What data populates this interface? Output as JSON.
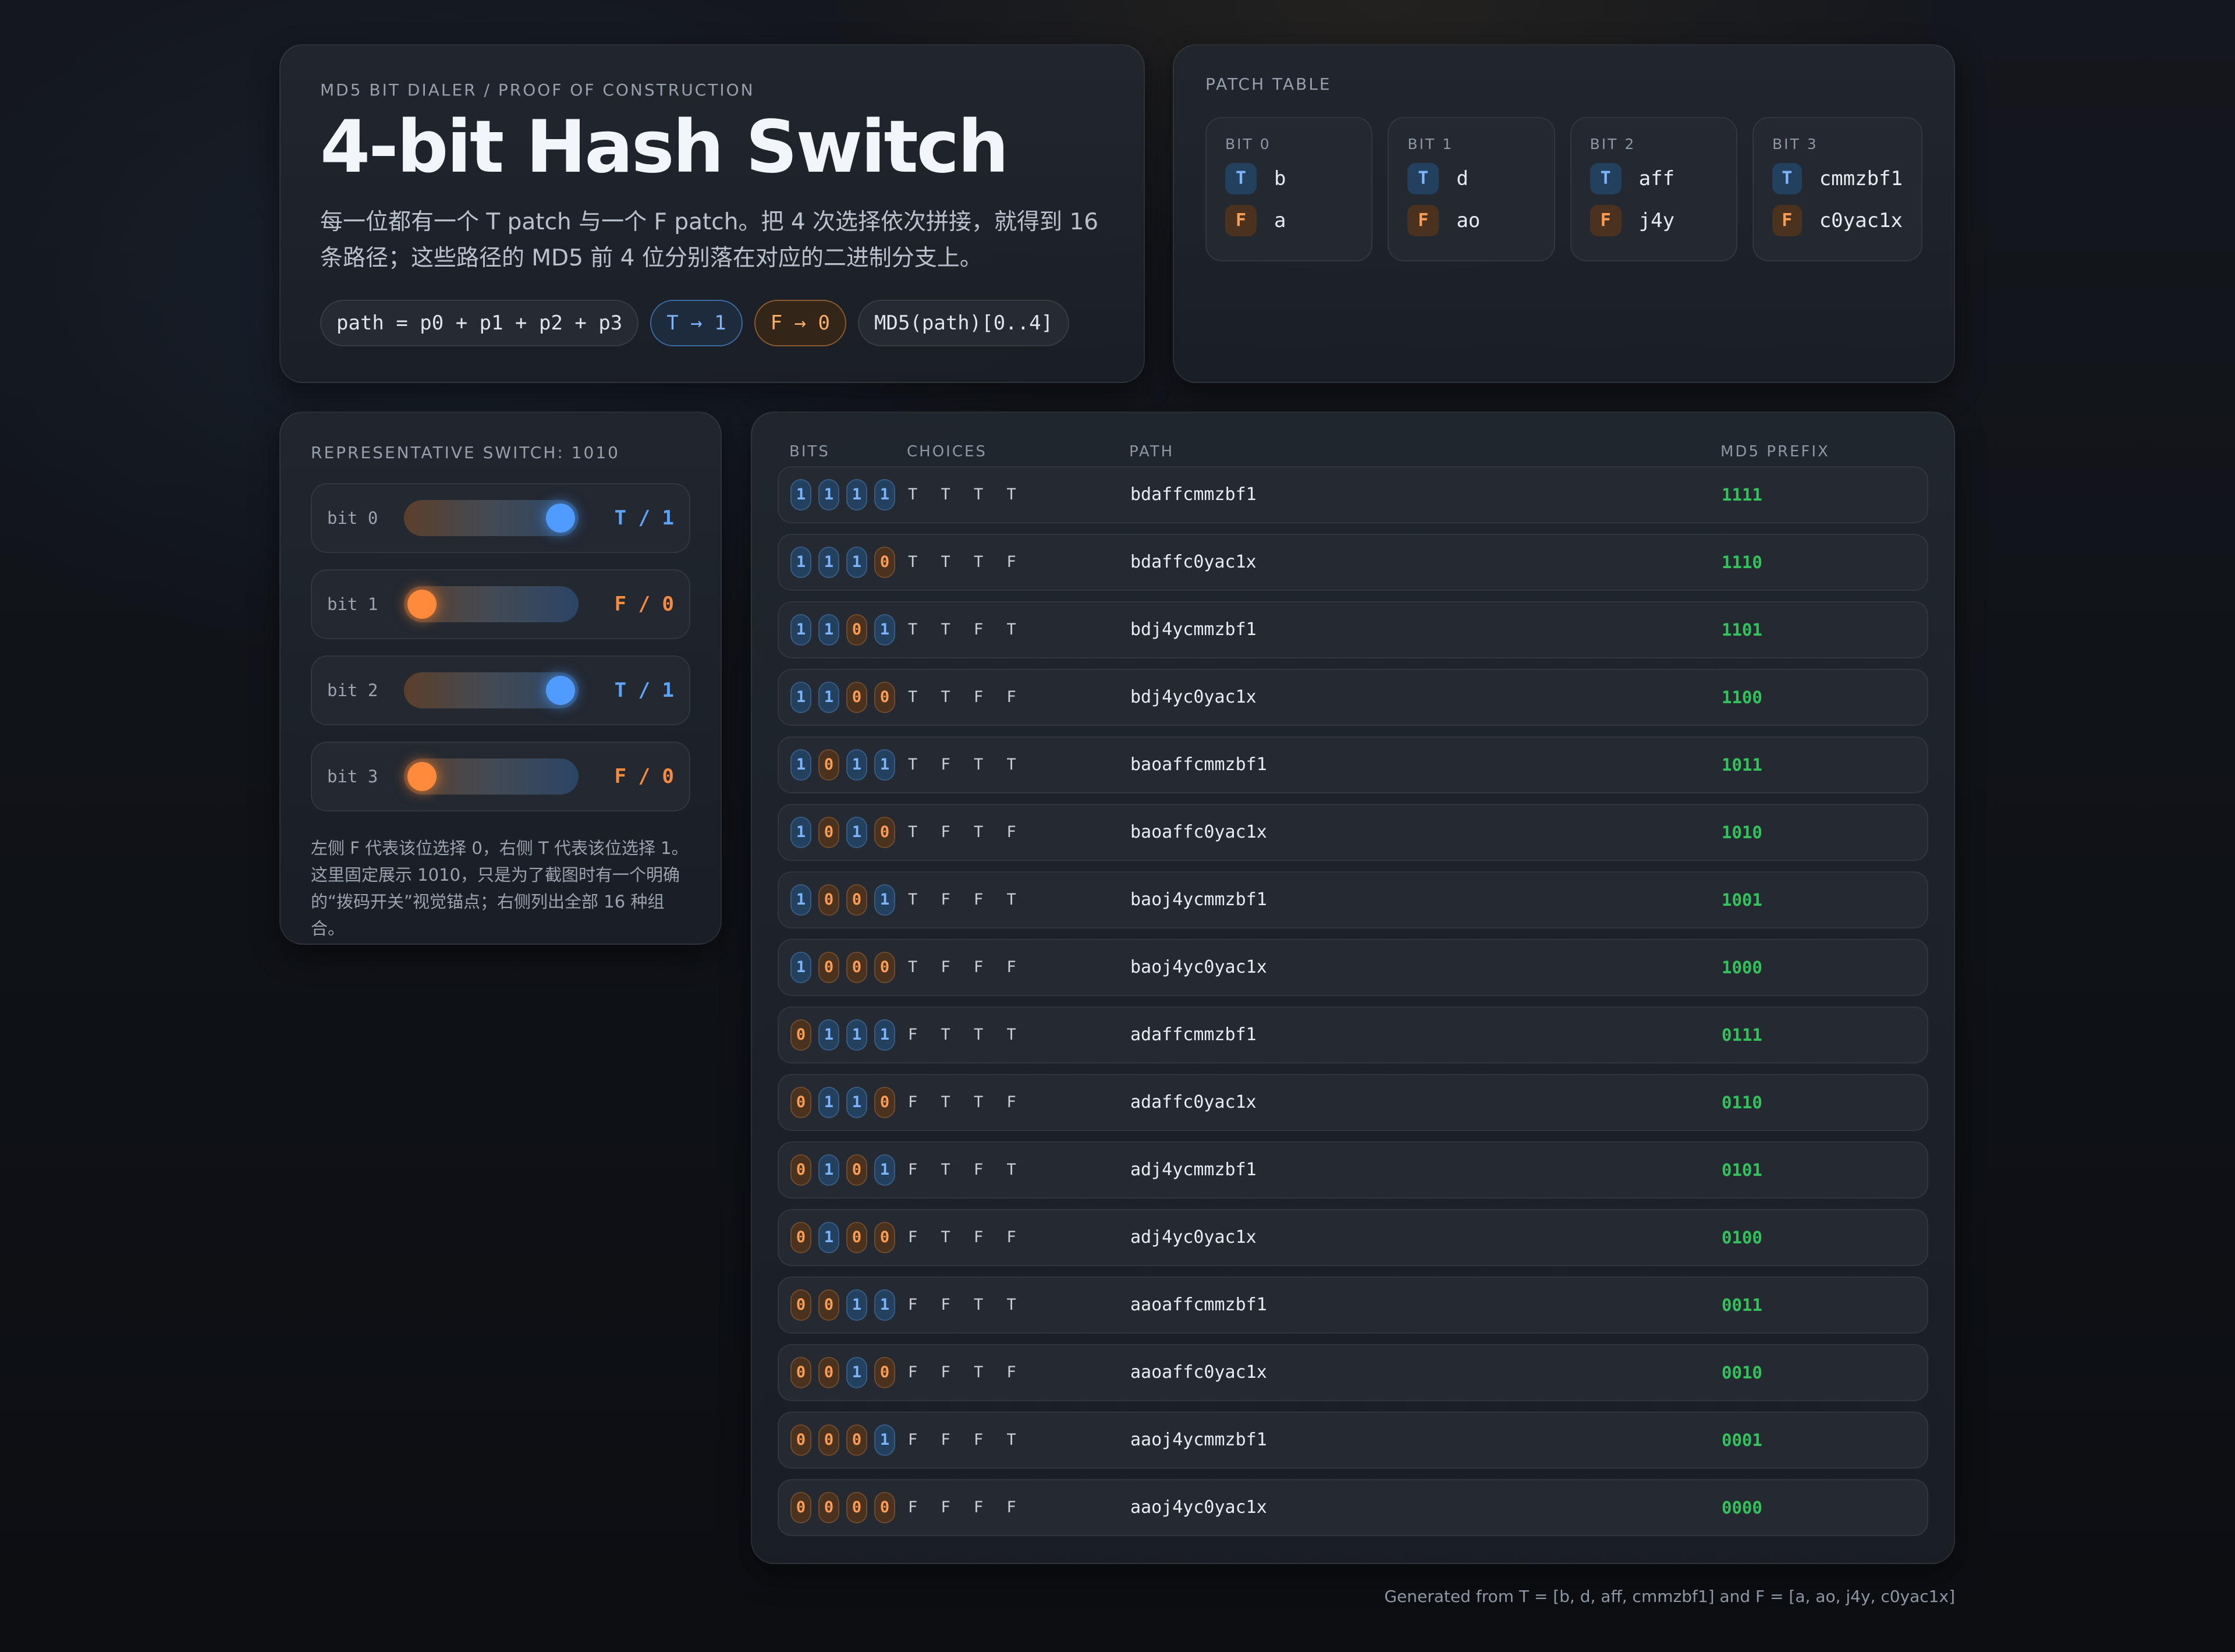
{
  "intro": {
    "overline": "MD5 BIT DIALER / PROOF OF CONSTRUCTION",
    "title": "4-bit Hash Switch",
    "description": "每一位都有一个 T patch 与一个 F patch。把 4 次选择依次拼接，就得到 16 条路径；这些路径的 MD5 前 4 位分别落在对应的二进制分支上。",
    "chips": [
      "path = p0 + p1 + p2 + p3",
      "T → 1",
      "F → 0",
      "MD5(path)[0..4]"
    ]
  },
  "patch_table": {
    "title": "PATCH TABLE",
    "bits": [
      {
        "label": "BIT 0",
        "t": "b",
        "f": "a"
      },
      {
        "label": "BIT 1",
        "t": "d",
        "f": "ao"
      },
      {
        "label": "BIT 2",
        "t": "aff",
        "f": "j4y"
      },
      {
        "label": "BIT 3",
        "t": "cmmzbf1",
        "f": "c0yac1x"
      }
    ],
    "t_badge": "T",
    "f_badge": "F"
  },
  "switch": {
    "title": "REPRESENTATIVE SWITCH: 1010",
    "rows": [
      {
        "label": "bit 0",
        "state": "T / 1",
        "on": true
      },
      {
        "label": "bit 1",
        "state": "F / 0",
        "on": false
      },
      {
        "label": "bit 2",
        "state": "T / 1",
        "on": true
      },
      {
        "label": "bit 3",
        "state": "F / 0",
        "on": false
      }
    ],
    "note": "左侧 F 代表该位选择 0，右侧 T 代表该位选择 1。这里固定展示 1010，只是为了截图时有一个明确的“拨码开关”视觉锚点；右侧列出全部 16 种组合。"
  },
  "table": {
    "headers": {
      "bits": "BITS",
      "choices": "CHOICES",
      "path": "PATH",
      "prefix": "MD5 PREFIX"
    },
    "rows": [
      {
        "bits": "1111",
        "choices": "T T T T",
        "path": "bdaffcmmzbf1",
        "prefix": "1111"
      },
      {
        "bits": "1110",
        "choices": "T T T F",
        "path": "bdaffc0yac1x",
        "prefix": "1110"
      },
      {
        "bits": "1101",
        "choices": "T T F T",
        "path": "bdj4ycmmzbf1",
        "prefix": "1101"
      },
      {
        "bits": "1100",
        "choices": "T T F F",
        "path": "bdj4yc0yac1x",
        "prefix": "1100"
      },
      {
        "bits": "1011",
        "choices": "T F T T",
        "path": "baoaffcmmzbf1",
        "prefix": "1011"
      },
      {
        "bits": "1010",
        "choices": "T F T F",
        "path": "baoaffc0yac1x",
        "prefix": "1010"
      },
      {
        "bits": "1001",
        "choices": "T F F T",
        "path": "baoj4ycmmzbf1",
        "prefix": "1001"
      },
      {
        "bits": "1000",
        "choices": "T F F F",
        "path": "baoj4yc0yac1x",
        "prefix": "1000"
      },
      {
        "bits": "0111",
        "choices": "F T T T",
        "path": "adaffcmmzbf1",
        "prefix": "0111"
      },
      {
        "bits": "0110",
        "choices": "F T T F",
        "path": "adaffc0yac1x",
        "prefix": "0110"
      },
      {
        "bits": "0101",
        "choices": "F T F T",
        "path": "adj4ycmmzbf1",
        "prefix": "0101"
      },
      {
        "bits": "0100",
        "choices": "F T F F",
        "path": "adj4yc0yac1x",
        "prefix": "0100"
      },
      {
        "bits": "0011",
        "choices": "F F T T",
        "path": "aaoaffcmmzbf1",
        "prefix": "0011"
      },
      {
        "bits": "0010",
        "choices": "F F T F",
        "path": "aaoaffc0yac1x",
        "prefix": "0010"
      },
      {
        "bits": "0001",
        "choices": "F F F T",
        "path": "aaoj4ycmmzbf1",
        "prefix": "0001"
      },
      {
        "bits": "0000",
        "choices": "F F F F",
        "path": "aaoj4yc0yac1x",
        "prefix": "0000"
      }
    ]
  },
  "footer": "Generated from T = [b, d, aff, cmmzbf1] and F = [a, ao, j4y, c0yac1x]",
  "colors": {
    "t_accent": "#5ea4ff",
    "f_accent": "#ff8a3c",
    "prefix_green": "#32c45a"
  }
}
